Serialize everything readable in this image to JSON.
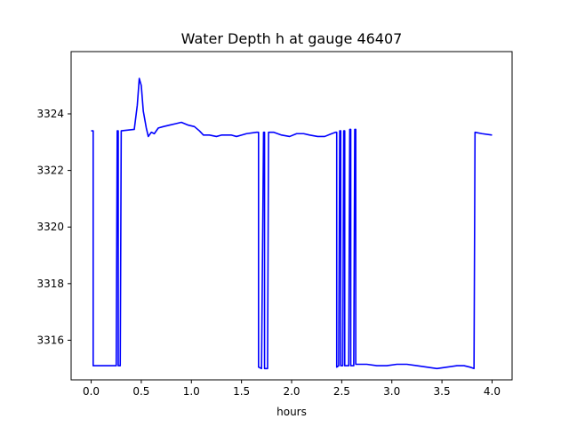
{
  "chart_data": {
    "type": "line",
    "title": "Water Depth h at gauge 46407",
    "xlabel": "hours",
    "ylabel": "",
    "xlim": [
      -0.2,
      4.2
    ],
    "ylim": [
      3314.6,
      3326.2
    ],
    "xticks": [
      0.0,
      0.5,
      1.0,
      1.5,
      2.0,
      2.5,
      3.0,
      3.5,
      4.0
    ],
    "xtick_labels": [
      "0.0",
      "0.5",
      "1.0",
      "1.5",
      "2.0",
      "2.5",
      "3.0",
      "3.5",
      "4.0"
    ],
    "yticks": [
      3316,
      3318,
      3320,
      3322,
      3324
    ],
    "ytick_labels": [
      "3316",
      "3318",
      "3320",
      "3322",
      "3324"
    ],
    "grid": false,
    "legend": "none",
    "series": [
      {
        "color": "#0000ff",
        "points": [
          [
            0.0,
            3323.4
          ],
          [
            0.02,
            3323.4
          ],
          [
            0.02,
            3315.1
          ],
          [
            0.25,
            3315.1
          ],
          [
            0.26,
            3323.4
          ],
          [
            0.27,
            3323.4
          ],
          [
            0.27,
            3315.1
          ],
          [
            0.29,
            3315.1
          ],
          [
            0.3,
            3323.4
          ],
          [
            0.43,
            3323.45
          ],
          [
            0.46,
            3324.3
          ],
          [
            0.48,
            3325.25
          ],
          [
            0.5,
            3325.0
          ],
          [
            0.52,
            3324.1
          ],
          [
            0.55,
            3323.5
          ],
          [
            0.57,
            3323.2
          ],
          [
            0.6,
            3323.35
          ],
          [
            0.63,
            3323.3
          ],
          [
            0.67,
            3323.5
          ],
          [
            0.72,
            3323.55
          ],
          [
            0.78,
            3323.6
          ],
          [
            0.84,
            3323.65
          ],
          [
            0.9,
            3323.7
          ],
          [
            0.97,
            3323.6
          ],
          [
            1.03,
            3323.55
          ],
          [
            1.08,
            3323.4
          ],
          [
            1.12,
            3323.25
          ],
          [
            1.18,
            3323.25
          ],
          [
            1.25,
            3323.2
          ],
          [
            1.3,
            3323.25
          ],
          [
            1.4,
            3323.25
          ],
          [
            1.45,
            3323.2
          ],
          [
            1.5,
            3323.25
          ],
          [
            1.55,
            3323.3
          ],
          [
            1.65,
            3323.35
          ],
          [
            1.67,
            3323.35
          ],
          [
            1.67,
            3315.05
          ],
          [
            1.7,
            3315.0
          ],
          [
            1.72,
            3323.35
          ],
          [
            1.73,
            3323.35
          ],
          [
            1.73,
            3315.0
          ],
          [
            1.76,
            3315.0
          ],
          [
            1.77,
            3323.35
          ],
          [
            1.82,
            3323.35
          ],
          [
            1.9,
            3323.25
          ],
          [
            1.98,
            3323.2
          ],
          [
            2.05,
            3323.3
          ],
          [
            2.12,
            3323.3
          ],
          [
            2.18,
            3323.25
          ],
          [
            2.26,
            3323.2
          ],
          [
            2.33,
            3323.2
          ],
          [
            2.4,
            3323.3
          ],
          [
            2.44,
            3323.35
          ],
          [
            2.45,
            3323.35
          ],
          [
            2.45,
            3315.05
          ],
          [
            2.47,
            3315.1
          ],
          [
            2.48,
            3323.4
          ],
          [
            2.49,
            3323.4
          ],
          [
            2.49,
            3315.1
          ],
          [
            2.51,
            3315.1
          ],
          [
            2.52,
            3323.4
          ],
          [
            2.53,
            3323.4
          ],
          [
            2.53,
            3315.1
          ],
          [
            2.57,
            3315.1
          ],
          [
            2.58,
            3323.45
          ],
          [
            2.59,
            3323.45
          ],
          [
            2.59,
            3315.1
          ],
          [
            2.62,
            3315.1
          ],
          [
            2.63,
            3323.45
          ],
          [
            2.64,
            3323.45
          ],
          [
            2.64,
            3315.15
          ],
          [
            2.75,
            3315.15
          ],
          [
            2.85,
            3315.1
          ],
          [
            2.95,
            3315.1
          ],
          [
            3.05,
            3315.15
          ],
          [
            3.15,
            3315.15
          ],
          [
            3.25,
            3315.1
          ],
          [
            3.35,
            3315.05
          ],
          [
            3.45,
            3315.0
          ],
          [
            3.55,
            3315.05
          ],
          [
            3.65,
            3315.1
          ],
          [
            3.72,
            3315.1
          ],
          [
            3.78,
            3315.05
          ],
          [
            3.82,
            3315.0
          ],
          [
            3.83,
            3323.35
          ],
          [
            3.9,
            3323.3
          ],
          [
            4.0,
            3323.25
          ]
        ]
      }
    ]
  }
}
